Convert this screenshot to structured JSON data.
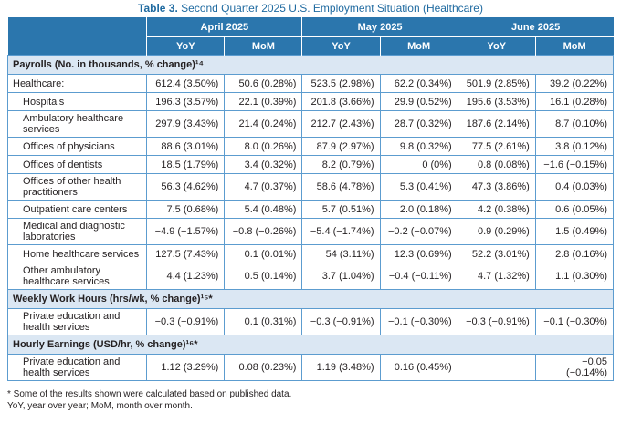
{
  "caption": {
    "label": "Table 3.",
    "title": "Second Quarter 2025 U.S. Employment Situation (Healthcare)"
  },
  "columns": {
    "periods": [
      "April 2025",
      "May 2025",
      "June 2025"
    ],
    "sub": [
      "YoY",
      "MoM",
      "YoY",
      "MoM",
      "YoY",
      "MoM"
    ]
  },
  "sections": [
    {
      "title": "Payrolls (No. in thousands, % change)¹⁴",
      "rows": [
        {
          "label": "Healthcare:",
          "values": [
            "612.4 (3.50%)",
            "50.6 (0.28%)",
            "523.5 (2.98%)",
            "62.2 (0.34%)",
            "501.9 (2.85%)",
            "39.2 (0.22%)"
          ]
        },
        {
          "label": "Hospitals",
          "values": [
            "196.3 (3.57%)",
            "22.1 (0.39%)",
            "201.8 (3.66%)",
            "29.9 (0.52%)",
            "195.6 (3.53%)",
            "16.1 (0.28%)"
          ]
        },
        {
          "label": "Ambulatory healthcare services",
          "values": [
            "297.9 (3.43%)",
            "21.4 (0.24%)",
            "212.7 (2.43%)",
            "28.7 (0.32%)",
            "187.6 (2.14%)",
            "8.7 (0.10%)"
          ]
        },
        {
          "label": "Offices of physicians",
          "values": [
            "88.6 (3.01%)",
            "8.0 (0.26%)",
            "87.9 (2.97%)",
            "9.8 (0.32%)",
            "77.5 (2.61%)",
            "3.8 (0.12%)"
          ]
        },
        {
          "label": "Offices of dentists",
          "values": [
            "18.5 (1.79%)",
            "3.4 (0.32%)",
            "8.2 (0.79%)",
            "0 (0%)",
            "0.8 (0.08%)",
            "−1.6 (−0.15%)"
          ]
        },
        {
          "label": "Offices of other health practitioners",
          "values": [
            "56.3 (4.62%)",
            "4.7 (0.37%)",
            "58.6 (4.78%)",
            "5.3 (0.41%)",
            "47.3 (3.86%)",
            "0.4 (0.03%)"
          ]
        },
        {
          "label": "Outpatient care centers",
          "values": [
            "7.5 (0.68%)",
            "5.4 (0.48%)",
            "5.7 (0.51%)",
            "2.0 (0.18%)",
            "4.2 (0.38%)",
            "0.6 (0.05%)"
          ]
        },
        {
          "label": "Medical and diagnostic laboratories",
          "values": [
            "−4.9 (−1.57%)",
            "−0.8 (−0.26%)",
            "−5.4 (−1.74%)",
            "−0.2 (−0.07%)",
            "0.9 (0.29%)",
            "1.5 (0.49%)"
          ]
        },
        {
          "label": "Home healthcare services",
          "values": [
            "127.5 (7.43%)",
            "0.1 (0.01%)",
            "54 (3.11%)",
            "12.3 (0.69%)",
            "52.2 (3.01%)",
            "2.8 (0.16%)"
          ]
        },
        {
          "label": "Other ambulatory healthcare services",
          "values": [
            "4.4 (1.23%)",
            "0.5 (0.14%)",
            "3.7 (1.04%)",
            "−0.4 (−0.11%)",
            "4.7 (1.32%)",
            "1.1 (0.30%)"
          ]
        }
      ]
    },
    {
      "title": "Weekly Work Hours (hrs/wk, % change)¹⁵*",
      "rows": [
        {
          "label": "Private education and health services",
          "values": [
            "−0.3 (−0.91%)",
            "0.1 (0.31%)",
            "−0.3 (−0.91%)",
            "−0.1 (−0.30%)",
            "−0.3 (−0.91%)",
            "−0.1 (−0.30%)"
          ]
        }
      ]
    },
    {
      "title": "Hourly Earnings (USD/hr, % change)¹⁶*",
      "rows": [
        {
          "label": "Private education and health services",
          "values": [
            "1.12 (3.29%)",
            "0.08 (0.23%)",
            "1.19 (3.48%)",
            "0.16 (0.45%)",
            "",
            "−0.05 (−0.14%)"
          ]
        }
      ]
    }
  ],
  "footnotes": [
    "* Some of the results shown were calculated based on published data.",
    "YoY, year over year; MoM, month over month."
  ]
}
